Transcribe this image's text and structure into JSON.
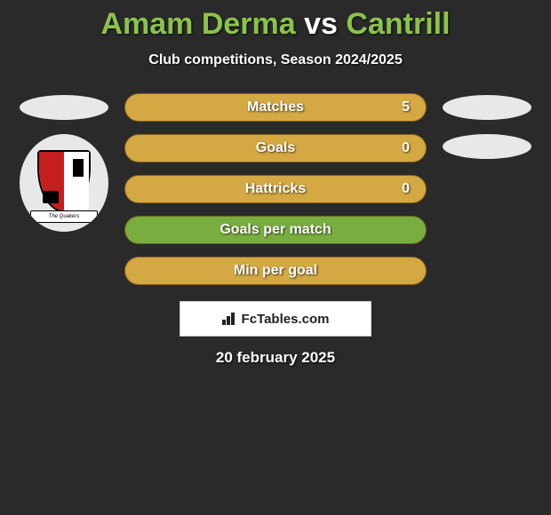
{
  "header": {
    "title_p1": "Amam Derma",
    "title_vs": " vs ",
    "title_p2": "Cantrill",
    "title_color_p1": "#8bc34a",
    "title_color_vs": "#ffffff",
    "title_color_p2": "#8bc34a",
    "subtitle": "Club competitions, Season 2024/2025"
  },
  "crest": {
    "banner_text": "The Quakers"
  },
  "stats": {
    "rows": [
      {
        "label": "Matches",
        "value": "5",
        "bg": "#d4a843"
      },
      {
        "label": "Goals",
        "value": "0",
        "bg": "#d4a843"
      },
      {
        "label": "Hattricks",
        "value": "0",
        "bg": "#d4a843"
      },
      {
        "label": "Goals per match",
        "value": "",
        "bg": "#7aad3f"
      },
      {
        "label": "Min per goal",
        "value": "",
        "bg": "#d4a843"
      }
    ]
  },
  "footer": {
    "brand": "FcTables.com",
    "date": "20 february 2025"
  },
  "style": {
    "background": "#2a2a2a",
    "ellipse_color": "#e8e8e8"
  }
}
